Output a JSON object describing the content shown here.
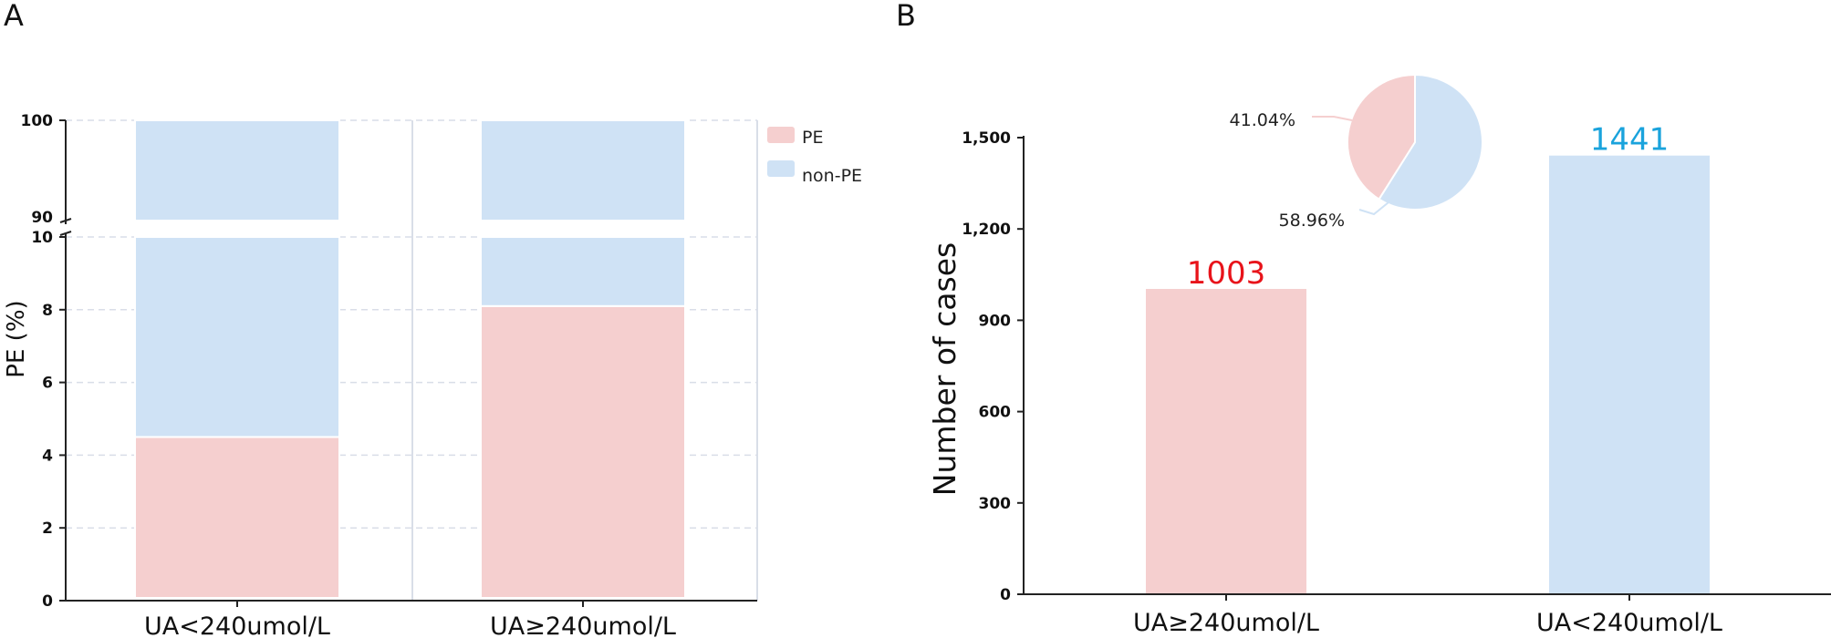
{
  "colors": {
    "pe": "#f5cfcf",
    "non_pe": "#cfe2f5",
    "value_red": "#e8131a",
    "value_blue": "#1aa3dc",
    "grid": "#d9dee8",
    "axis": "#222222"
  },
  "chart_data": [
    {
      "panel": "A",
      "type": "bar",
      "stacked": true,
      "broken_y_axis": true,
      "ylabel": "PE (%)",
      "categories": [
        "UA<240umol/L",
        "UA≥240umol/L"
      ],
      "series": [
        {
          "name": "PE",
          "values": [
            4.5,
            8.1
          ]
        },
        {
          "name": "non-PE",
          "values": [
            95.5,
            91.9
          ]
        }
      ],
      "y_segments": [
        {
          "range": [
            0,
            10
          ],
          "ticks": [
            "0",
            "2",
            "4",
            "6",
            "8",
            "10"
          ]
        },
        {
          "range": [
            90,
            100
          ],
          "ticks": [
            "90",
            "100"
          ]
        }
      ],
      "legend": [
        "PE",
        "non-PE"
      ],
      "legend_position": "top-right",
      "grid": true
    },
    {
      "panel": "B",
      "type": "bar",
      "ylabel": "Number of cases",
      "categories": [
        "UA≥240umol/L",
        "UA<240umol/L"
      ],
      "values": [
        1003,
        1441
      ],
      "data_labels": [
        "1003",
        "1441"
      ],
      "ylim": [
        0,
        1500
      ],
      "yticks": [
        "0",
        "300",
        "600",
        "900",
        "1,200",
        "1,500"
      ],
      "inset_pie": {
        "slices": [
          {
            "label": "41.04%",
            "value": 41.04,
            "category": "UA≥240umol/L"
          },
          {
            "label": "58.96%",
            "value": 58.96,
            "category": "UA<240umol/L"
          }
        ]
      }
    }
  ]
}
